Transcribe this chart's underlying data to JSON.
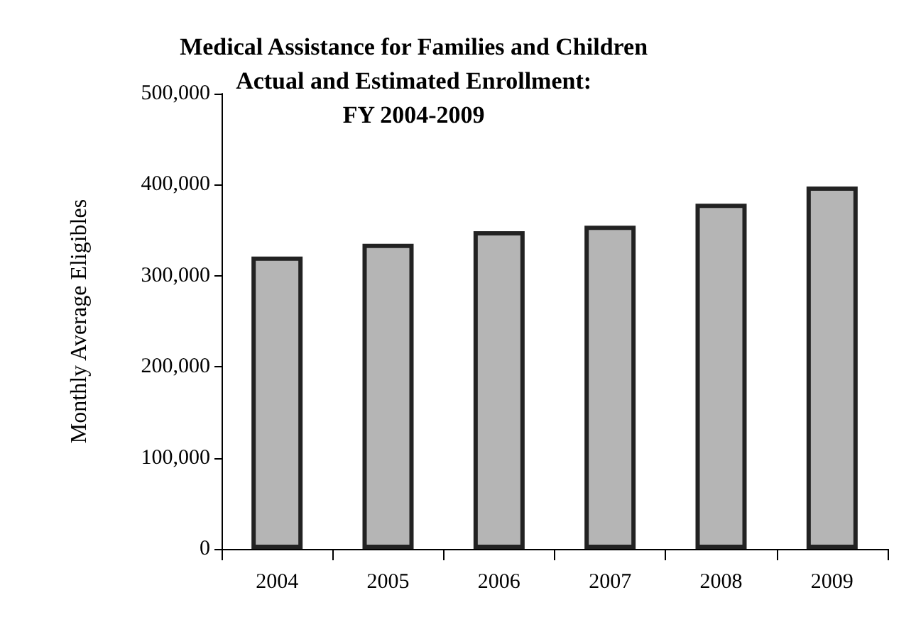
{
  "chart_data": {
    "type": "bar",
    "title": "Medical Assistance for Families and Children\nActual and Estimated Enrollment:\nFY 2004-2009",
    "ylabel": "Monthly Average Eligibles",
    "categories": [
      "2004",
      "2005",
      "2006",
      "2007",
      "2008",
      "2009"
    ],
    "values": [
      321000,
      335000,
      349000,
      355000,
      379000,
      398000
    ],
    "color": "#b5b5b5",
    "ylim": [
      0,
      500000
    ],
    "yticks": [
      {
        "value": 0,
        "label": "0"
      },
      {
        "value": 100000,
        "label": "100,000"
      },
      {
        "value": 200000,
        "label": "200,000"
      },
      {
        "value": 300000,
        "label": "300,000"
      },
      {
        "value": 400000,
        "label": "400,000"
      },
      {
        "value": 500000,
        "label": "500,000"
      }
    ],
    "grid": false
  }
}
